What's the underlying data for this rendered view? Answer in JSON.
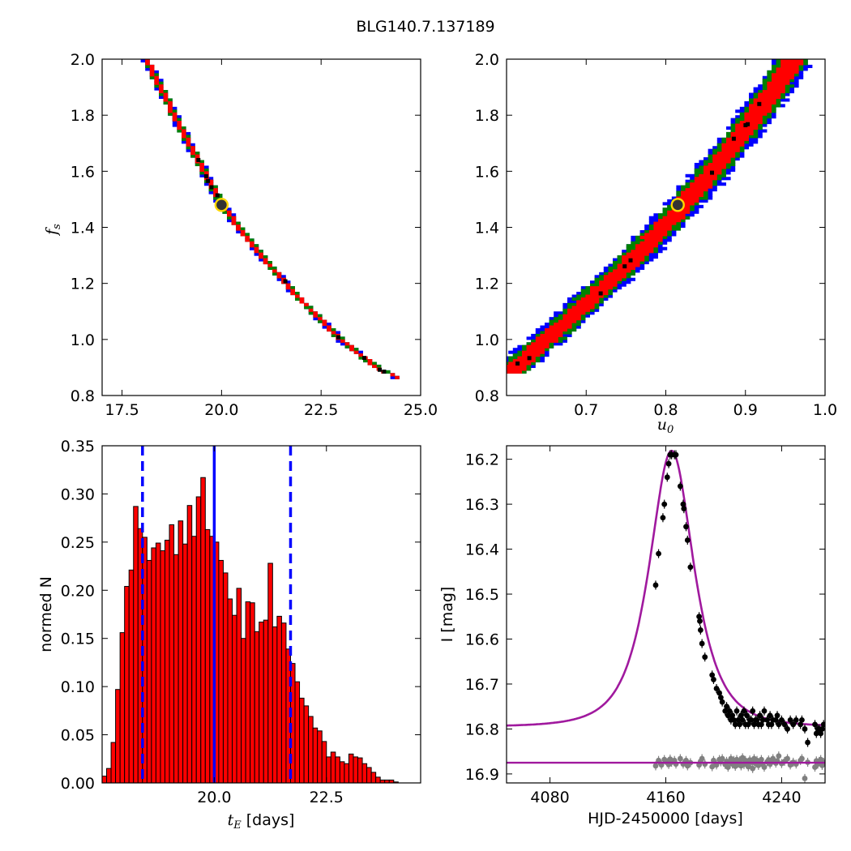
{
  "title": "BLG140.7.137189",
  "colors": {
    "red": "#ff0000",
    "green": "#008000",
    "blue": "#0000ff",
    "model": "#a0199e",
    "gray": "#808080",
    "black": "#000000",
    "marker_face": "#333333",
    "marker_ring": "#ffd700"
  },
  "chart_data": [
    {
      "type": "heatmap",
      "panel": "top-left",
      "xlabel": "",
      "ylabel": "f_s",
      "xlim": [
        17.0,
        25.0
      ],
      "ylim": [
        0.8,
        2.0
      ],
      "xticks": [
        "17.5",
        "20.0",
        "22.5",
        "25.0"
      ],
      "yticks": [
        "0.8",
        "1.0",
        "1.2",
        "1.4",
        "1.6",
        "1.8",
        "2.0"
      ],
      "confidence_band": {
        "centerline": [
          [
            18.1,
            2.0
          ],
          [
            19.0,
            1.75
          ],
          [
            20.0,
            1.48
          ],
          [
            21.0,
            1.3
          ],
          [
            22.0,
            1.14
          ],
          [
            23.0,
            1.0
          ],
          [
            24.0,
            0.89
          ],
          [
            24.4,
            0.87
          ]
        ],
        "red_halfwidth": 0.055,
        "green_halfwidth": 0.085,
        "blue_halfwidth": 0.105
      },
      "best_fit": {
        "x": 20.0,
        "y": 1.48
      }
    },
    {
      "type": "heatmap",
      "panel": "top-right",
      "xlabel": "u_0",
      "ylabel": "",
      "xlim": [
        0.6,
        1.0
      ],
      "ylim": [
        0.8,
        2.0
      ],
      "xticks": [
        "0.7",
        "0.8",
        "0.9",
        "1.0"
      ],
      "yticks": [
        "0.8",
        "1.0",
        "1.2",
        "1.4",
        "1.6",
        "1.8",
        "2.0"
      ],
      "confidence_band": {
        "centerline": [
          [
            0.605,
            0.885
          ],
          [
            0.65,
            1.0
          ],
          [
            0.7,
            1.13
          ],
          [
            0.75,
            1.26
          ],
          [
            0.8,
            1.41
          ],
          [
            0.85,
            1.57
          ],
          [
            0.9,
            1.75
          ],
          [
            0.95,
            1.95
          ],
          [
            0.96,
            2.0
          ]
        ],
        "red_halfwidth": 0.013,
        "green_halfwidth": 0.019,
        "blue_halfwidth": 0.024
      },
      "best_fit": {
        "x": 0.815,
        "y": 1.48
      }
    },
    {
      "type": "bar",
      "panel": "bottom-left",
      "xlabel": "t_E",
      "xlabel_unit": "[days]",
      "ylabel": "normed N",
      "xlim": [
        17.5,
        24.6
      ],
      "ylim": [
        0.0,
        0.35
      ],
      "xticks": [
        "20.0",
        "22.5"
      ],
      "yticks": [
        "0.00",
        "0.05",
        "0.10",
        "0.15",
        "0.20",
        "0.25",
        "0.30",
        "0.35"
      ],
      "bin_start": 17.5,
      "bin_width": 0.1,
      "values": [
        0.007,
        0.015,
        0.042,
        0.097,
        0.156,
        0.204,
        0.221,
        0.287,
        0.264,
        0.255,
        0.231,
        0.244,
        0.249,
        0.241,
        0.252,
        0.268,
        0.237,
        0.272,
        0.248,
        0.288,
        0.256,
        0.297,
        0.317,
        0.263,
        0.256,
        0.25,
        0.231,
        0.218,
        0.191,
        0.174,
        0.202,
        0.15,
        0.188,
        0.187,
        0.157,
        0.167,
        0.169,
        0.228,
        0.162,
        0.173,
        0.166,
        0.139,
        0.124,
        0.105,
        0.088,
        0.08,
        0.069,
        0.057,
        0.054,
        0.043,
        0.027,
        0.032,
        0.027,
        0.022,
        0.02,
        0.03,
        0.027,
        0.026,
        0.02,
        0.016,
        0.011,
        0.006,
        0.003,
        0.003,
        0.003,
        0.001
      ],
      "median_line": 20.0,
      "interval_lines": [
        18.4,
        21.7
      ]
    },
    {
      "type": "scatter",
      "panel": "bottom-right",
      "xlabel": "HJD-2450000 [days]",
      "ylabel": "I [mag]",
      "xlim": [
        4050,
        4270
      ],
      "ylim": [
        16.92,
        16.17
      ],
      "xticks": [
        "4080",
        "4160",
        "4240"
      ],
      "yticks": [
        "16.2",
        "16.3",
        "16.4",
        "16.5",
        "16.6",
        "16.7",
        "16.8",
        "16.9"
      ],
      "model": {
        "t0": 4164,
        "tE": 20.0,
        "u0": 0.815,
        "baseline": 16.795,
        "fs": 1.48
      },
      "residual_baseline": 16.875,
      "series": [
        {
          "name": "",
          "values": [
            [
              4153,
              16.48
            ],
            [
              4155,
              16.41
            ],
            [
              4158,
              16.33
            ],
            [
              4159,
              16.3
            ],
            [
              4161,
              16.24
            ],
            [
              4162,
              16.21
            ],
            [
              4163,
              16.19
            ],
            [
              4164,
              16.19
            ],
            [
              4166,
              16.19
            ],
            [
              4167,
              16.19
            ],
            [
              4170,
              16.26
            ],
            [
              4172,
              16.3
            ],
            [
              4172.5,
              16.31
            ],
            [
              4174,
              16.35
            ],
            [
              4175,
              16.38
            ],
            [
              4177,
              16.44
            ],
            [
              4183,
              16.55
            ],
            [
              4183.5,
              16.56
            ],
            [
              4184,
              16.58
            ],
            [
              4185,
              16.61
            ],
            [
              4187,
              16.64
            ],
            [
              4192,
              16.68
            ],
            [
              4193,
              16.69
            ],
            [
              4195,
              16.71
            ],
            [
              4197,
              16.72
            ],
            [
              4198,
              16.73
            ],
            [
              4199,
              16.74
            ],
            [
              4201,
              16.76
            ],
            [
              4202,
              16.75
            ],
            [
              4203,
              16.77
            ],
            [
              4204,
              16.76
            ],
            [
              4205,
              16.78
            ],
            [
              4206,
              16.77
            ],
            [
              4207,
              16.78
            ],
            [
              4208,
              16.79
            ],
            [
              4209,
              16.76
            ],
            [
              4210,
              16.78
            ],
            [
              4211,
              16.79
            ],
            [
              4212,
              16.77
            ],
            [
              4213,
              16.78
            ],
            [
              4214,
              16.76
            ],
            [
              4215,
              16.79
            ],
            [
              4216,
              16.77
            ],
            [
              4217,
              16.79
            ],
            [
              4218,
              16.78
            ],
            [
              4219,
              16.78
            ],
            [
              4220,
              16.76
            ],
            [
              4221,
              16.79
            ],
            [
              4222,
              16.78
            ],
            [
              4223,
              16.78
            ],
            [
              4224,
              16.79
            ],
            [
              4225,
              16.77
            ],
            [
              4226,
              16.79
            ],
            [
              4227,
              16.78
            ],
            [
              4228,
              16.76
            ],
            [
              4230,
              16.78
            ],
            [
              4231,
              16.79
            ],
            [
              4232,
              16.77
            ],
            [
              4233,
              16.79
            ],
            [
              4234,
              16.78
            ],
            [
              4236,
              16.78
            ],
            [
              4237,
              16.77
            ],
            [
              4238,
              16.79
            ],
            [
              4240,
              16.78
            ],
            [
              4242,
              16.79
            ],
            [
              4244,
              16.8
            ],
            [
              4246,
              16.78
            ],
            [
              4248,
              16.79
            ],
            [
              4250,
              16.78
            ],
            [
              4253,
              16.79
            ],
            [
              4254,
              16.78
            ],
            [
              4256,
              16.8
            ],
            [
              4258,
              16.83
            ],
            [
              4263,
              16.79
            ],
            [
              4264,
              16.81
            ],
            [
              4265,
              16.8
            ],
            [
              4266,
              16.8
            ],
            [
              4267,
              16.81
            ],
            [
              4268,
              16.8
            ],
            [
              4269,
              16.79
            ]
          ]
        },
        {
          "name": "",
          "values": [
            [
              4153,
              16.882
            ],
            [
              4155,
              16.87
            ],
            [
              4157,
              16.88
            ],
            [
              4159,
              16.868
            ],
            [
              4161,
              16.875
            ],
            [
              4162,
              16.879
            ],
            [
              4163,
              16.867
            ],
            [
              4164,
              16.874
            ],
            [
              4166,
              16.87
            ],
            [
              4167,
              16.878
            ],
            [
              4170,
              16.866
            ],
            [
              4172,
              16.878
            ],
            [
              4174,
              16.87
            ],
            [
              4175,
              16.882
            ],
            [
              4177,
              16.875
            ],
            [
              4183,
              16.88
            ],
            [
              4184,
              16.872
            ],
            [
              4185,
              16.866
            ],
            [
              4187,
              16.878
            ],
            [
              4192,
              16.884
            ],
            [
              4193,
              16.87
            ],
            [
              4195,
              16.88
            ],
            [
              4197,
              16.868
            ],
            [
              4198,
              16.873
            ],
            [
              4199,
              16.866
            ],
            [
              4201,
              16.879
            ],
            [
              4202,
              16.872
            ],
            [
              4203,
              16.885
            ],
            [
              4204,
              16.873
            ],
            [
              4205,
              16.866
            ],
            [
              4206,
              16.878
            ],
            [
              4207,
              16.87
            ],
            [
              4208,
              16.883
            ],
            [
              4209,
              16.868
            ],
            [
              4210,
              16.876
            ],
            [
              4211,
              16.871
            ],
            [
              4212,
              16.882
            ],
            [
              4213,
              16.864
            ],
            [
              4214,
              16.879
            ],
            [
              4215,
              16.87
            ],
            [
              4216,
              16.876
            ],
            [
              4217,
              16.884
            ],
            [
              4218,
              16.869
            ],
            [
              4219,
              16.874
            ],
            [
              4220,
              16.888
            ],
            [
              4221,
              16.866
            ],
            [
              4222,
              16.877
            ],
            [
              4223,
              16.87
            ],
            [
              4224,
              16.881
            ],
            [
              4225,
              16.875
            ],
            [
              4226,
              16.868
            ],
            [
              4227,
              16.879
            ],
            [
              4228,
              16.885
            ],
            [
              4230,
              16.873
            ],
            [
              4231,
              16.869
            ],
            [
              4232,
              16.878
            ],
            [
              4233,
              16.874
            ],
            [
              4234,
              16.866
            ],
            [
              4236,
              16.876
            ],
            [
              4237,
              16.871
            ],
            [
              4238,
              16.86
            ],
            [
              4240,
              16.877
            ],
            [
              4242,
              16.872
            ],
            [
              4244,
              16.866
            ],
            [
              4246,
              16.88
            ],
            [
              4248,
              16.874
            ],
            [
              4250,
              16.878
            ],
            [
              4253,
              16.87
            ],
            [
              4254,
              16.866
            ],
            [
              4256,
              16.91
            ],
            [
              4258,
              16.874
            ],
            [
              4263,
              16.885
            ],
            [
              4264,
              16.871
            ],
            [
              4265,
              16.878
            ],
            [
              4266,
              16.872
            ],
            [
              4267,
              16.868
            ],
            [
              4268,
              16.881
            ],
            [
              4269,
              16.874
            ]
          ]
        }
      ]
    }
  ]
}
